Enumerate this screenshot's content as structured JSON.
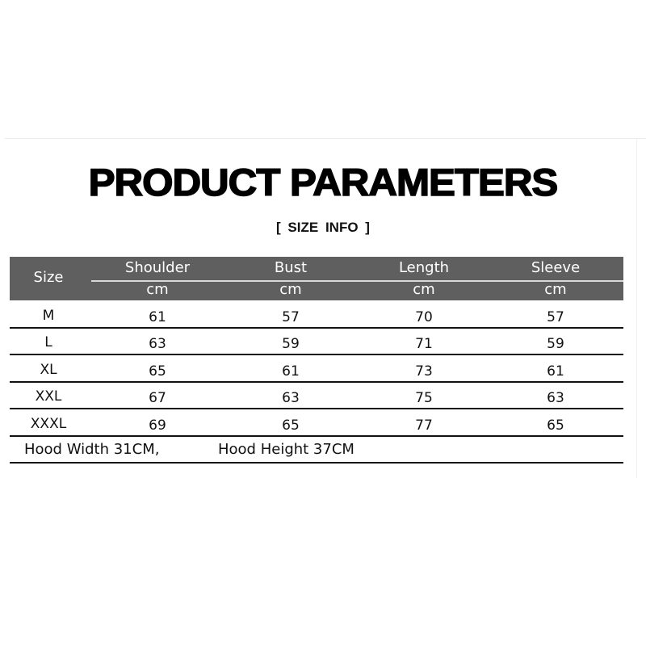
{
  "title": "PRODUCT PARAMETERS",
  "subtitle": "[ SIZE  INFO ]",
  "table": {
    "size_header": "Size",
    "columns": [
      {
        "label": "Shoulder",
        "unit": "cm"
      },
      {
        "label": "Bust",
        "unit": "cm"
      },
      {
        "label": "Length",
        "unit": "cm"
      },
      {
        "label": "Sleeve",
        "unit": "cm"
      }
    ],
    "rows": [
      {
        "size": "M",
        "values": [
          "61",
          "57",
          "70",
          "57"
        ]
      },
      {
        "size": "L",
        "values": [
          "63",
          "59",
          "71",
          "59"
        ]
      },
      {
        "size": "XL",
        "values": [
          "65",
          "61",
          "73",
          "61"
        ]
      },
      {
        "size": "XXL",
        "values": [
          "67",
          "63",
          "75",
          "63"
        ]
      },
      {
        "size": "XXXL",
        "values": [
          "69",
          "65",
          "77",
          "65"
        ]
      }
    ],
    "header_color": "#5f5f5f"
  },
  "notes": [
    "Hood Width 31CM,",
    "Hood Height 37CM"
  ]
}
